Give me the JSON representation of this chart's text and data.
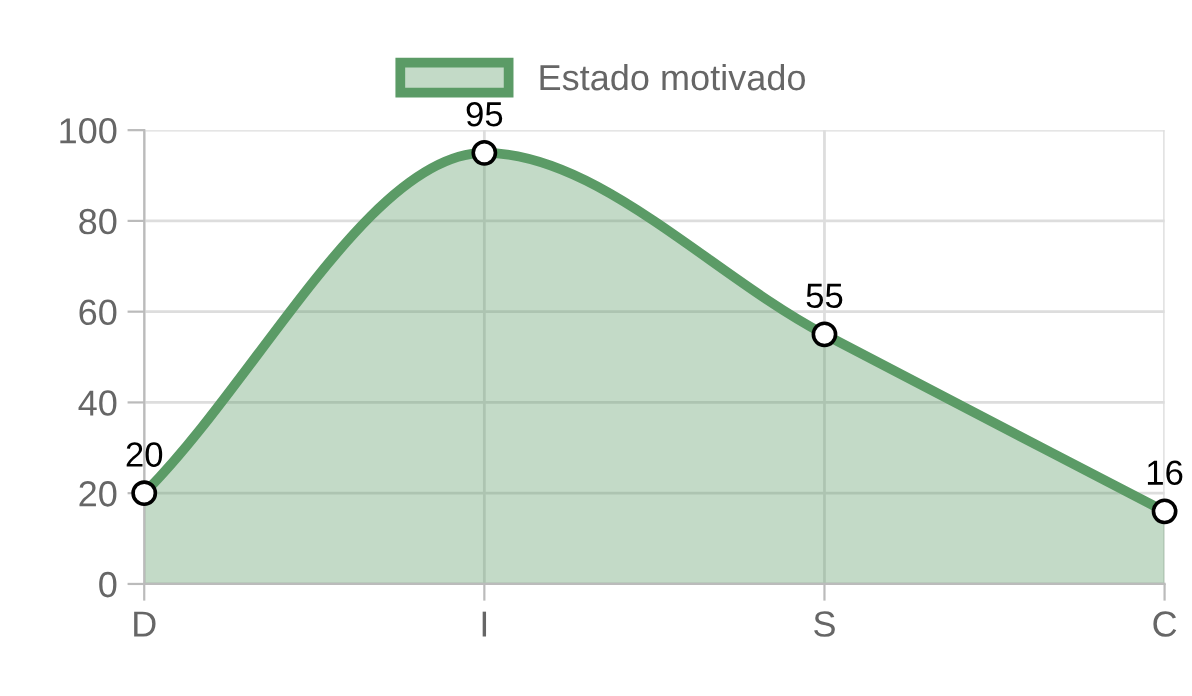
{
  "chart_data": {
    "type": "area",
    "categories": [
      "D",
      "I",
      "S",
      "C"
    ],
    "series": [
      {
        "name": "Estado motivado",
        "color": "#5b9b66",
        "values": [
          20,
          95,
          55,
          16
        ]
      }
    ],
    "ylim": [
      0,
      100
    ],
    "yticks": [
      0,
      20,
      40,
      60,
      80,
      100
    ],
    "grid": true,
    "legend": "top",
    "marker": "circle",
    "data_labels": true
  }
}
